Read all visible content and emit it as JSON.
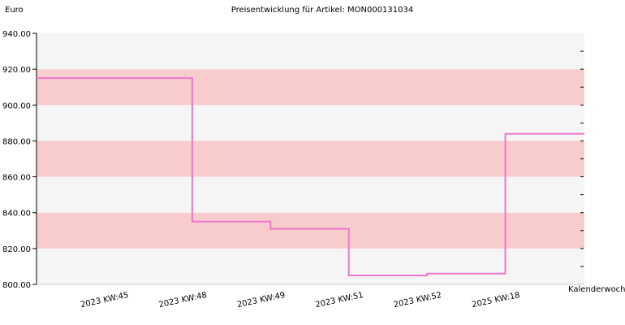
{
  "chart_data": {
    "type": "line",
    "step": true,
    "title": "Preisentwicklung für Artikel: MON000131034",
    "ylabel": "Euro",
    "xlabel": "Kalenderwoche",
    "ylim": [
      800,
      940
    ],
    "yticks": [
      "800.00",
      "820.00",
      "840.00",
      "860.00",
      "880.00",
      "900.00",
      "920.00",
      "940.00"
    ],
    "categories": [
      "2023 KW:45",
      "2023 KW:48",
      "2023 KW:49",
      "2023 KW:51",
      "2023 KW:52",
      "2025 KW:18"
    ],
    "series": [
      {
        "values": [
          915,
          835,
          831,
          805,
          806,
          884
        ]
      }
    ],
    "colors": {
      "line": "#ee77cc",
      "band_light": "#f5f5f5",
      "band_pink": "#f8cccc",
      "axis": "#000000"
    },
    "grid": false,
    "legend": false
  }
}
